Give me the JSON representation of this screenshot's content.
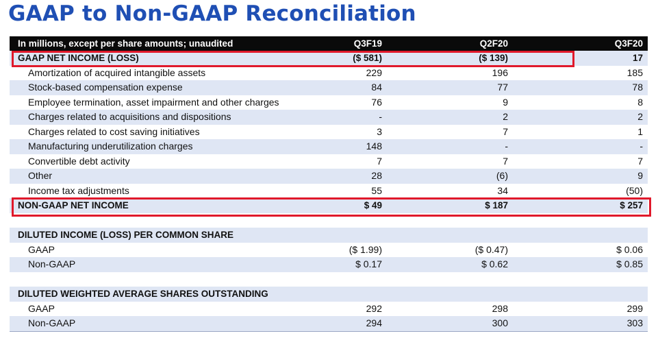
{
  "title": "GAAP to Non-GAAP Reconciliation",
  "header": {
    "label": "In millions, except per share amounts; unaudited",
    "col1": "Q3F19",
    "col2": "Q2F20",
    "col3": "Q3F20"
  },
  "gaap_net_income": {
    "label": "GAAP NET INCOME (LOSS)",
    "c1": "($ 581)",
    "c2": "($ 139)",
    "c3": "17"
  },
  "adjustments": [
    {
      "label": "Amortization of acquired intangible assets",
      "c1": "229",
      "c2": "196",
      "c3": "185"
    },
    {
      "label": "Stock-based compensation expense",
      "c1": "84",
      "c2": "77",
      "c3": "78"
    },
    {
      "label": "Employee termination, asset impairment and other charges",
      "c1": "76",
      "c2": "9",
      "c3": "8"
    },
    {
      "label": "Charges related to acquisitions and dispositions",
      "c1": "-",
      "c2": "2",
      "c3": "2"
    },
    {
      "label": "Charges related to cost saving initiatives",
      "c1": "3",
      "c2": "7",
      "c3": "1"
    },
    {
      "label": "Manufacturing underutilization charges",
      "c1": "148",
      "c2": "-",
      "c3": "-"
    },
    {
      "label": "Convertible debt activity",
      "c1": "7",
      "c2": "7",
      "c3": "7"
    },
    {
      "label": "Other",
      "c1": "28",
      "c2": "(6)",
      "c3": "9"
    },
    {
      "label": "Income tax adjustments",
      "c1": "55",
      "c2": "34",
      "c3": "(50)"
    }
  ],
  "non_gaap_net_income": {
    "label": "NON-GAAP NET INCOME",
    "c1": "$ 49",
    "c2": "$ 187",
    "c3": "$ 257"
  },
  "eps": {
    "heading": "DILUTED INCOME (LOSS) PER COMMON SHARE",
    "rows": [
      {
        "label": "GAAP",
        "c1": "($ 1.99)",
        "c2": "($ 0.47)",
        "c3": "$ 0.06"
      },
      {
        "label": "Non-GAAP",
        "c1": "$ 0.17",
        "c2": "$ 0.62",
        "c3": "$ 0.85"
      }
    ]
  },
  "shares": {
    "heading": "DILUTED WEIGHTED AVERAGE SHARES OUTSTANDING",
    "rows": [
      {
        "label": "GAAP",
        "c1": "292",
        "c2": "298",
        "c3": "299"
      },
      {
        "label": "Non-GAAP",
        "c1": "294",
        "c2": "300",
        "c3": "303"
      }
    ]
  },
  "colors": {
    "title": "#1f4fb4",
    "header_bg": "#0a0a0a",
    "band": "#dfe6f4",
    "highlight": "#e0192b"
  }
}
